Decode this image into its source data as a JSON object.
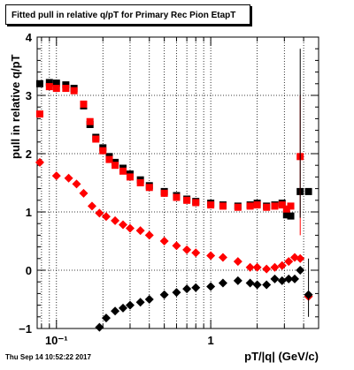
{
  "chart_data": {
    "type": "scatter",
    "title": "Fitted pull in relative q/pT for Primary Rec Pion EtapT",
    "xlabel": "pT/|q| (GeV/c)",
    "ylabel": "pull in relative q/pT",
    "xscale": "log",
    "xlim": [
      0.075,
      5.0
    ],
    "ylim": [
      -1,
      4
    ],
    "grid": true,
    "x_tick_labels": [
      "10⁻¹",
      "1"
    ],
    "y_tick_labels": [
      "−1",
      "0",
      "1",
      "2",
      "3",
      "4"
    ],
    "series": [
      {
        "color": "#000000",
        "marker": "square",
        "points": [
          [
            0.078,
            3.2
          ],
          [
            0.09,
            3.22
          ],
          [
            0.1,
            3.21
          ],
          [
            0.115,
            3.18
          ],
          [
            0.13,
            3.12
          ],
          [
            0.15,
            2.82
          ],
          [
            0.165,
            2.5
          ],
          [
            0.18,
            2.28
          ],
          [
            0.2,
            2.1
          ],
          [
            0.22,
            1.95
          ],
          [
            0.24,
            1.85
          ],
          [
            0.27,
            1.75
          ],
          [
            0.3,
            1.65
          ],
          [
            0.35,
            1.55
          ],
          [
            0.4,
            1.45
          ],
          [
            0.5,
            1.35
          ],
          [
            0.6,
            1.28
          ],
          [
            0.7,
            1.22
          ],
          [
            0.8,
            1.18
          ],
          [
            1.0,
            1.15
          ],
          [
            1.2,
            1.12
          ],
          [
            1.5,
            1.1
          ],
          [
            1.8,
            1.12
          ],
          [
            2.0,
            1.15
          ],
          [
            2.3,
            1.1
          ],
          [
            2.6,
            1.12
          ],
          [
            2.9,
            1.15
          ],
          [
            3.1,
            0.95
          ],
          [
            3.3,
            0.93
          ],
          [
            3.8,
            1.35
          ],
          [
            4.3,
            1.35
          ]
        ]
      },
      {
        "color": "#ff0000",
        "marker": "square",
        "points": [
          [
            0.078,
            2.68
          ],
          [
            0.09,
            3.15
          ],
          [
            0.1,
            3.12
          ],
          [
            0.115,
            3.12
          ],
          [
            0.13,
            3.08
          ],
          [
            0.15,
            2.85
          ],
          [
            0.165,
            2.55
          ],
          [
            0.18,
            2.25
          ],
          [
            0.2,
            2.05
          ],
          [
            0.22,
            1.9
          ],
          [
            0.24,
            1.8
          ],
          [
            0.27,
            1.7
          ],
          [
            0.3,
            1.6
          ],
          [
            0.35,
            1.5
          ],
          [
            0.4,
            1.42
          ],
          [
            0.5,
            1.32
          ],
          [
            0.6,
            1.25
          ],
          [
            0.7,
            1.2
          ],
          [
            0.8,
            1.16
          ],
          [
            1.0,
            1.12
          ],
          [
            1.2,
            1.1
          ],
          [
            1.5,
            1.08
          ],
          [
            1.8,
            1.1
          ],
          [
            2.0,
            1.12
          ],
          [
            2.3,
            1.08
          ],
          [
            2.6,
            1.1
          ],
          [
            2.9,
            1.12
          ],
          [
            3.1,
            1.05
          ],
          [
            3.3,
            1.1
          ],
          [
            3.8,
            1.95
          ]
        ]
      },
      {
        "color": "#ff0000",
        "marker": "diamond",
        "points": [
          [
            0.078,
            1.85
          ],
          [
            0.1,
            1.62
          ],
          [
            0.12,
            1.58
          ],
          [
            0.135,
            1.48
          ],
          [
            0.15,
            1.32
          ],
          [
            0.17,
            1.1
          ],
          [
            0.19,
            0.98
          ],
          [
            0.21,
            0.92
          ],
          [
            0.24,
            0.85
          ],
          [
            0.27,
            0.78
          ],
          [
            0.3,
            0.72
          ],
          [
            0.35,
            0.68
          ],
          [
            0.4,
            0.6
          ],
          [
            0.5,
            0.5
          ],
          [
            0.6,
            0.42
          ],
          [
            0.7,
            0.35
          ],
          [
            0.8,
            0.3
          ],
          [
            1.0,
            0.25
          ],
          [
            1.2,
            0.22
          ],
          [
            1.5,
            0.15
          ],
          [
            1.8,
            0.05
          ],
          [
            2.0,
            0.05
          ],
          [
            2.3,
            0.02
          ],
          [
            2.6,
            0.05
          ],
          [
            2.9,
            0.08
          ],
          [
            3.2,
            0.15
          ],
          [
            3.5,
            0.22
          ],
          [
            3.8,
            0.2
          ],
          [
            4.3,
            -0.45
          ]
        ]
      },
      {
        "color": "#000000",
        "marker": "diamond",
        "points": [
          [
            0.19,
            -0.98
          ],
          [
            0.21,
            -0.82
          ],
          [
            0.24,
            -0.7
          ],
          [
            0.27,
            -0.65
          ],
          [
            0.3,
            -0.6
          ],
          [
            0.35,
            -0.55
          ],
          [
            0.4,
            -0.5
          ],
          [
            0.5,
            -0.42
          ],
          [
            0.6,
            -0.38
          ],
          [
            0.7,
            -0.32
          ],
          [
            0.8,
            -0.3
          ],
          [
            1.0,
            -0.28
          ],
          [
            1.2,
            -0.22
          ],
          [
            1.5,
            -0.18
          ],
          [
            1.8,
            -0.22
          ],
          [
            2.0,
            -0.25
          ],
          [
            2.3,
            -0.25
          ],
          [
            2.6,
            -0.15
          ],
          [
            2.9,
            -0.18
          ],
          [
            3.2,
            -0.15
          ],
          [
            3.5,
            -0.15
          ],
          [
            3.8,
            0.0
          ],
          [
            4.3,
            -0.42
          ]
        ]
      }
    ]
  },
  "footer": {
    "date": "Thu Sep 14 10:52:22 2017"
  }
}
